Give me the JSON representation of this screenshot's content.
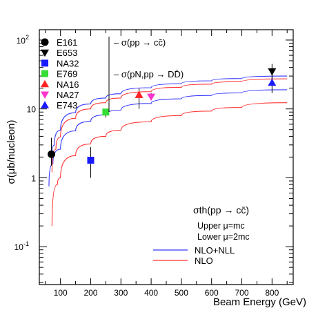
{
  "chart_data": {
    "type": "scatter",
    "xlabel": "Beam Energy (GeV)",
    "ylabel": "σ(μb/nucleon)",
    "xlim": [
      30,
      870
    ],
    "ylim_log10": [
      -1.55,
      2.15
    ],
    "x_ticks": [
      100,
      200,
      300,
      400,
      500,
      600,
      700,
      800
    ],
    "y_ticks": [
      {
        "value": 100,
        "base": "10",
        "exp": "2"
      },
      {
        "value": 10,
        "base": "10",
        "exp": ""
      },
      {
        "value": 1,
        "base": "1",
        "exp": ""
      },
      {
        "value": 0.1,
        "base": "10",
        "exp": "-1"
      }
    ],
    "scale": "log-y",
    "legend_placement": "top-left",
    "legend": [
      {
        "label": "E161",
        "marker": "circle",
        "color": "#000000"
      },
      {
        "label": "E653",
        "marker": "triangle-down",
        "color": "#000000"
      },
      {
        "label": "NA32",
        "marker": "square",
        "color": "#1a1aff"
      },
      {
        "label": "E769",
        "marker": "square",
        "color": "#33dd33"
      },
      {
        "label": "NA16",
        "marker": "triangle-up",
        "color": "#ff2222"
      },
      {
        "label": "NA27",
        "marker": "triangle-down",
        "color": "#ff33cc"
      },
      {
        "label": "E743",
        "marker": "triangle-up",
        "color": "#1a1aff"
      }
    ],
    "legend_notes": [
      {
        "text": "– σ(pp → cc̄)"
      },
      {
        "text": "– σ(pN,pp → DD̄)"
      }
    ],
    "points": [
      {
        "series": "E161",
        "x": 70,
        "y": 2.2,
        "ylo": 1.5,
        "yhi": 3.8,
        "marker": "circle",
        "color": "#000000"
      },
      {
        "series": "NA32",
        "x": 200,
        "y": 1.8,
        "ylo": 1.0,
        "yhi": 2.8,
        "marker": "square",
        "color": "#1a1aff"
      },
      {
        "series": "E769",
        "x": 250,
        "y": 9.0,
        "ylo": 7.5,
        "yhi": 10.0,
        "marker": "square",
        "color": "#33dd33"
      },
      {
        "series": "NA16",
        "x": 360,
        "y": 16.0,
        "ylo": 10.0,
        "yhi": 20.0,
        "marker": "triangle-up",
        "color": "#ff2222"
      },
      {
        "series": "NA27",
        "x": 400,
        "y": 15.0,
        "ylo": 13.5,
        "yhi": 17.0,
        "marker": "triangle-down",
        "color": "#ff33cc"
      },
      {
        "series": "E653",
        "x": 800,
        "y": 35.0,
        "ylo": 27.0,
        "yhi": 45.0,
        "marker": "triangle-down",
        "color": "#000000"
      },
      {
        "series": "E743",
        "x": 800,
        "y": 24.0,
        "ylo": 17.0,
        "yhi": 32.0,
        "marker": "triangle-up",
        "color": "#1a1aff"
      }
    ],
    "curves": [
      {
        "name": "NLO+NLL",
        "color": "#3333ff",
        "x": [
          70,
          80,
          100,
          150,
          200,
          250,
          300,
          400,
          500,
          600,
          700,
          850
        ],
        "y": [
          1.6,
          3.0,
          4.9,
          8.8,
          11.8,
          14.4,
          16.6,
          20.3,
          23.2,
          25.6,
          27.6,
          30.0
        ]
      },
      {
        "name": "NLO+NLL",
        "color": "#3333ff",
        "x": [
          62,
          75,
          100,
          150,
          200,
          250,
          300,
          400,
          500,
          600,
          700,
          850
        ],
        "y": [
          0.75,
          1.6,
          2.6,
          4.8,
          6.6,
          8.2,
          9.6,
          12.0,
          14.0,
          15.7,
          17.1,
          19.0
        ]
      },
      {
        "name": "NLO",
        "color": "#ff3333",
        "x": [
          72,
          85,
          100,
          150,
          200,
          250,
          300,
          400,
          500,
          600,
          700,
          850
        ],
        "y": [
          1.2,
          2.6,
          3.9,
          7.3,
          10.0,
          12.3,
          14.4,
          17.8,
          20.6,
          22.9,
          24.9,
          27.3
        ]
      },
      {
        "name": "NLO",
        "color": "#ff3333",
        "x": [
          72,
          90,
          100,
          150,
          200,
          250,
          300,
          400,
          500,
          600,
          700,
          850
        ],
        "y": [
          0.2,
          0.8,
          1.0,
          2.1,
          3.1,
          4.0,
          4.9,
          6.5,
          8.0,
          9.3,
          10.5,
          12.3
        ]
      }
    ],
    "annotation": {
      "title_text": "σth(pp → cc̄)",
      "upper": "Upper μ=mc",
      "lower": "Lower μ=2mc",
      "lines": [
        {
          "label": "NLO+NLL",
          "color": "#3333ff"
        },
        {
          "label": "NLO",
          "color": "#ff3333"
        }
      ]
    }
  }
}
